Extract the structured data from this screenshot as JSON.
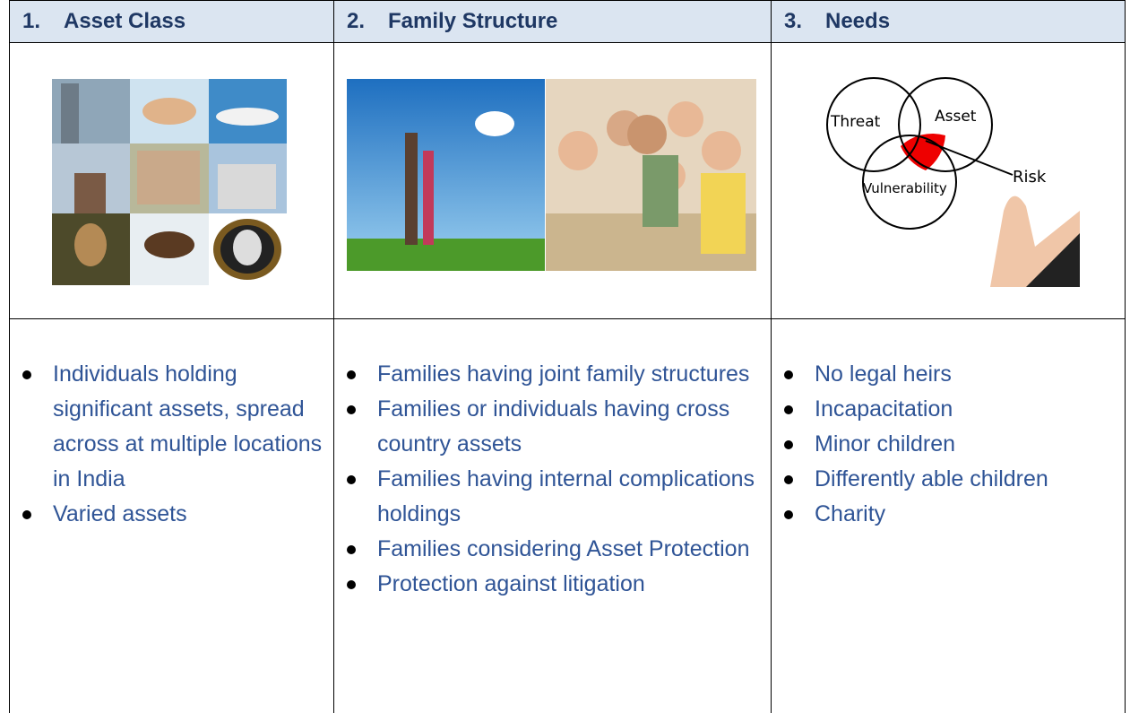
{
  "table": {
    "columns": [
      {
        "number": "1.",
        "title": "Asset Class",
        "items": [
          "Individuals holding significant assets, spread across at multiple locations in India",
          "Varied assets"
        ]
      },
      {
        "number": "2.",
        "title": "Family Structure",
        "items": [
          "Families having joint family structures",
          "Families or individuals having cross country assets",
          "Families having internal complications holdings",
          "Families considering Asset Protection",
          "Protection against litigation"
        ]
      },
      {
        "number": "3.",
        "title": "Needs",
        "items": [
          "No legal heirs",
          "Incapacitation",
          "Minor children",
          "Differently able children",
          "Charity"
        ]
      }
    ]
  },
  "venn": {
    "labels": [
      "Threat",
      "Asset",
      "Vulnerability",
      "Risk"
    ]
  }
}
